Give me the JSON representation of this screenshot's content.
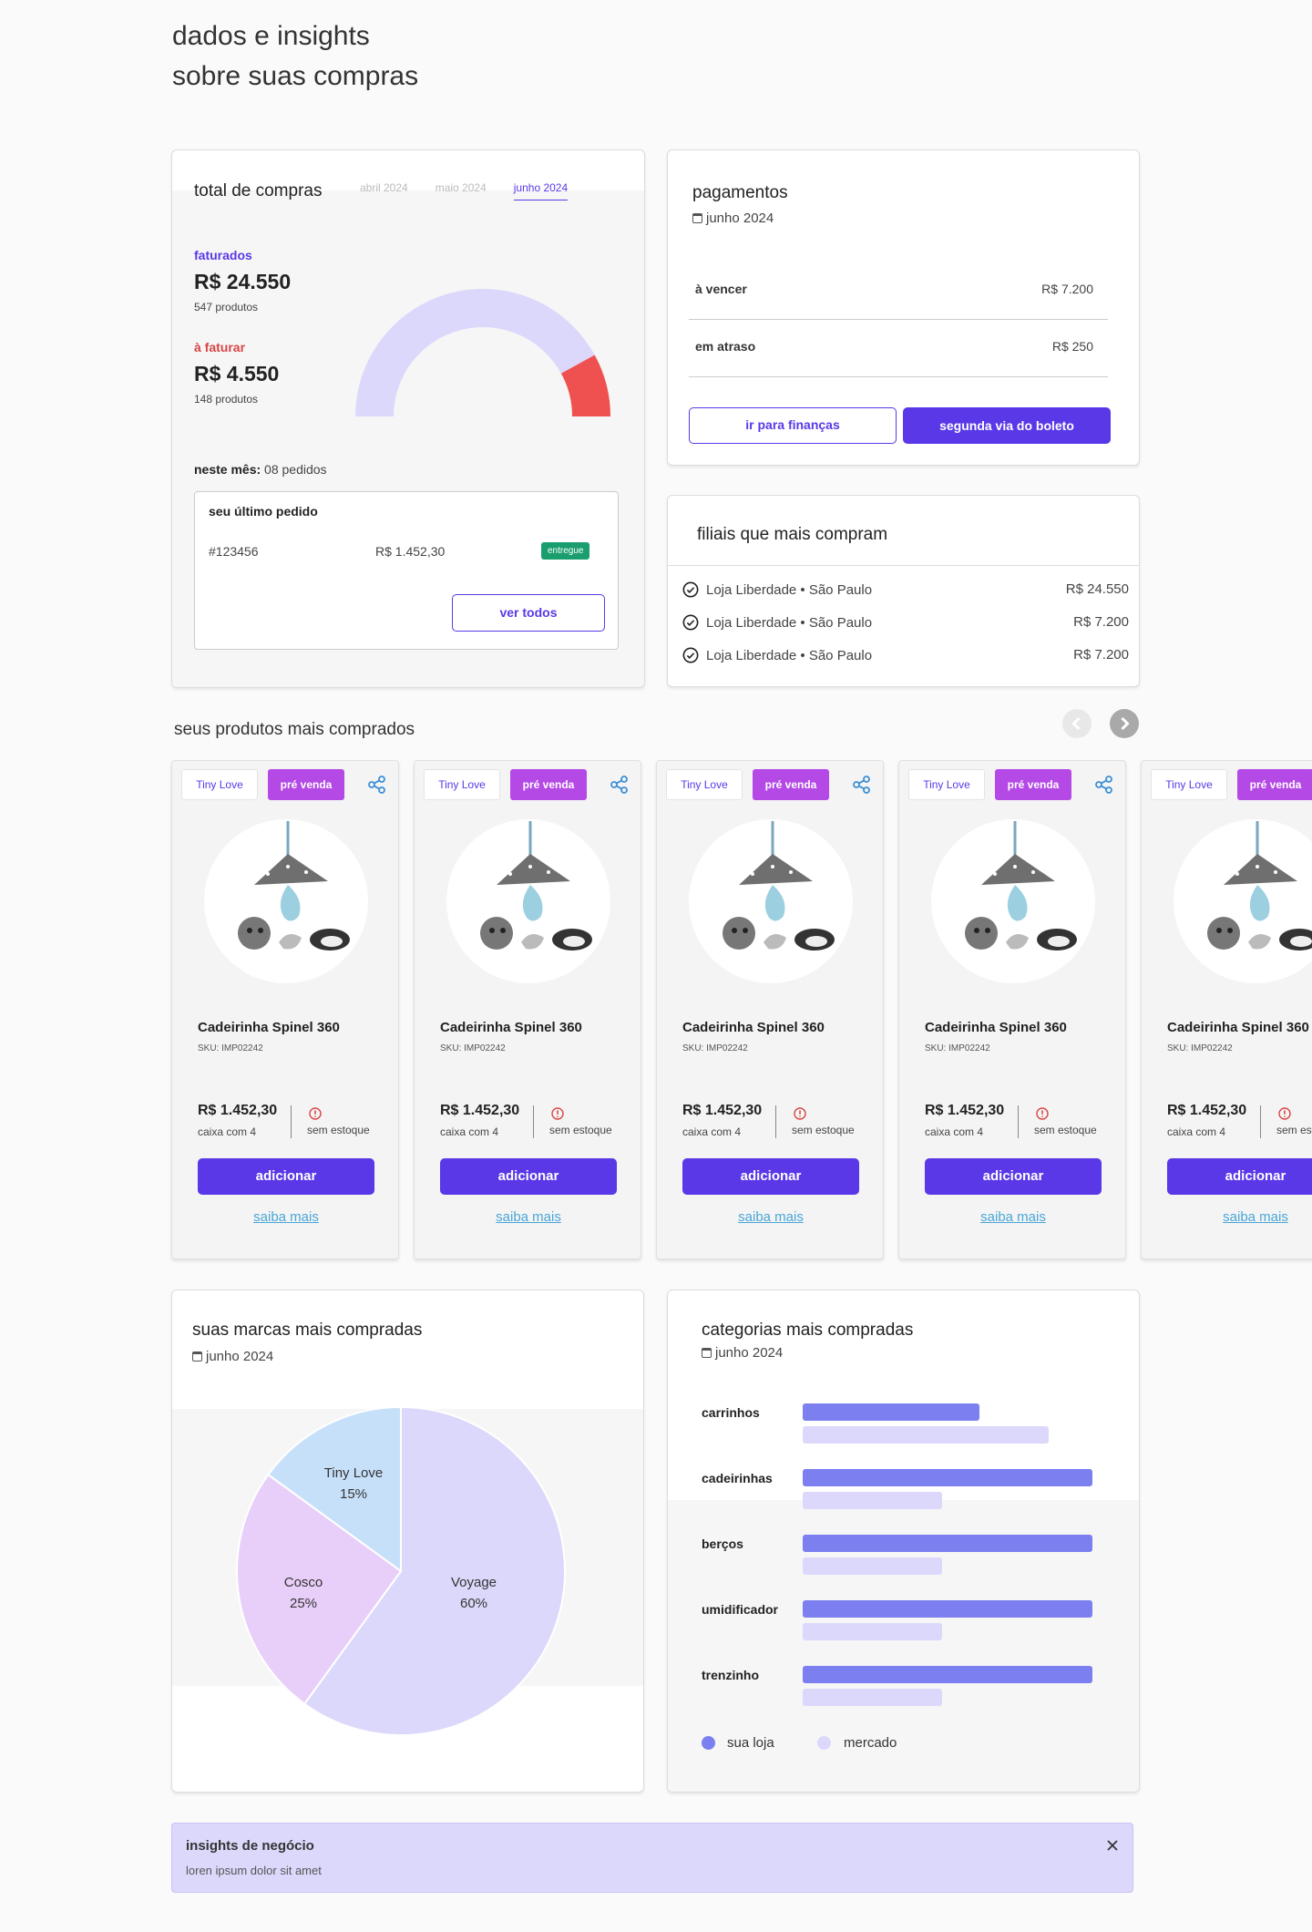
{
  "header": {
    "line1": "dados e insights",
    "line2": "sobre suas compras"
  },
  "total": {
    "title": "total de compras",
    "tabs": [
      "abril 2024",
      "maio 2024",
      "junho 2024"
    ],
    "active_tab": "junho 2024",
    "invoiced": {
      "label": "faturados",
      "value": "R$ 24.550",
      "sub": "547 produtos",
      "color": "#5a38e8"
    },
    "to_invoice": {
      "label": "à faturar",
      "value": "R$ 4.550",
      "sub": "148 produtos",
      "color": "#d94545"
    },
    "gauge": {
      "invoiced_fraction": 0.84,
      "invoiced_color": "#dcd8fb",
      "to_invoice_color": "#ef5150"
    },
    "month_label": "neste mês:",
    "month_value": "08 pedidos",
    "last_order": {
      "label": "seu último pedido",
      "id": "#123456",
      "value": "R$ 1.452,30",
      "status": "entregue"
    },
    "see_all": "ver todos"
  },
  "payments": {
    "title": "pagamentos",
    "date": "junho 2024",
    "rows": [
      {
        "label": "à vencer",
        "value": "R$ 7.200"
      },
      {
        "label": "em atraso",
        "value": "R$ 250"
      }
    ],
    "finance_button": "ir para finanças",
    "boleto_button": "segunda via do boleto"
  },
  "branches": {
    "title": "filiais que mais compram",
    "rows": [
      {
        "name": "Loja Liberdade • São Paulo",
        "value": "R$ 24.550"
      },
      {
        "name": "Loja Liberdade • São Paulo",
        "value": "R$ 7.200"
      },
      {
        "name": "Loja Liberdade • São Paulo",
        "value": "R$ 7.200"
      }
    ]
  },
  "products": {
    "title": "seus produtos mais comprados",
    "items": [
      {
        "brand": "Tiny Love",
        "tag": "pré venda",
        "name": "Cadeirinha Spinel 360",
        "sku": "SKU: IMP02242",
        "price": "R$ 1.452,30",
        "box": "caixa com 4",
        "stock": "sem estoque",
        "add": "adicionar",
        "more": "saiba mais"
      },
      {
        "brand": "Tiny Love",
        "tag": "pré venda",
        "name": "Cadeirinha Spinel 360",
        "sku": "SKU: IMP02242",
        "price": "R$ 1.452,30",
        "box": "caixa com 4",
        "stock": "sem estoque",
        "add": "adicionar",
        "more": "saiba mais"
      },
      {
        "brand": "Tiny Love",
        "tag": "pré venda",
        "name": "Cadeirinha Spinel 360",
        "sku": "SKU: IMP02242",
        "price": "R$ 1.452,30",
        "box": "caixa com 4",
        "stock": "sem estoque",
        "add": "adicionar",
        "more": "saiba mais"
      },
      {
        "brand": "Tiny Love",
        "tag": "pré venda",
        "name": "Cadeirinha Spinel 360",
        "sku": "SKU: IMP02242",
        "price": "R$ 1.452,30",
        "box": "caixa com 4",
        "stock": "sem estoque",
        "add": "adicionar",
        "more": "saiba mais"
      },
      {
        "brand": "Tiny Love",
        "tag": "pré venda",
        "name": "Cadeirinha Spinel 360",
        "sku": "SKU: IMP02242",
        "price": "R$ 1.452,30",
        "box": "caixa com 4",
        "stock": "sem estoque",
        "add": "adicionar",
        "more": "saiba mais"
      }
    ]
  },
  "brands": {
    "title": "suas marcas mais compradas",
    "date": "junho 2024",
    "chart_data": {
      "type": "pie",
      "slices": [
        {
          "name": "Voyage",
          "value": 60,
          "label": "60%",
          "color": "#dcd8fb"
        },
        {
          "name": "Cosco",
          "value": 25,
          "label": "25%",
          "color": "#e8cffa"
        },
        {
          "name": "Tiny Love",
          "value": 15,
          "label": "15%",
          "color": "#c7e0fa"
        }
      ]
    }
  },
  "categories": {
    "title": "categorias mais compradas",
    "date": "junho 2024",
    "chart_data": {
      "type": "bar",
      "orientation": "horizontal",
      "categories": [
        "carrinhos",
        "cadeirinhas",
        "berços",
        "umidificador",
        "trenzinho"
      ],
      "series": [
        {
          "name": "sua loja",
          "values": [
            61,
            100,
            100,
            100,
            100
          ],
          "color": "#7b7ff0"
        },
        {
          "name": "mercado",
          "values": [
            85,
            48,
            48,
            48,
            48
          ],
          "color": "#dcd8fb"
        }
      ],
      "xlim": [
        0,
        100
      ]
    }
  },
  "insights": {
    "title": "insights de negócio",
    "text": "loren ipsum dolor sit amet"
  }
}
